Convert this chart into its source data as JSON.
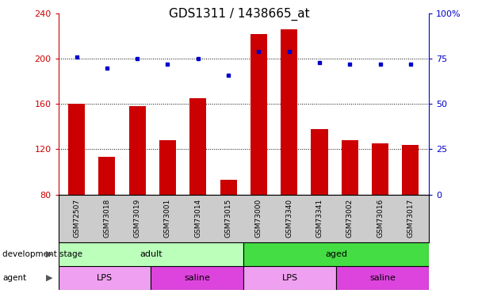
{
  "title": "GDS1311 / 1438665_at",
  "samples": [
    "GSM72507",
    "GSM73018",
    "GSM73019",
    "GSM73001",
    "GSM73014",
    "GSM73015",
    "GSM73000",
    "GSM73340",
    "GSM73341",
    "GSM73002",
    "GSM73016",
    "GSM73017"
  ],
  "counts": [
    160,
    113,
    158,
    128,
    165,
    93,
    222,
    226,
    138,
    128,
    125,
    124
  ],
  "percentiles": [
    76,
    70,
    75,
    72,
    75,
    66,
    79,
    79,
    73,
    72,
    72,
    72
  ],
  "ylim_left": [
    80,
    240
  ],
  "ylim_right": [
    0,
    100
  ],
  "yticks_left": [
    80,
    120,
    160,
    200,
    240
  ],
  "yticks_right": [
    0,
    25,
    50,
    75,
    100
  ],
  "bar_color": "#cc0000",
  "dot_color": "#0000cc",
  "development_stage_groups": [
    {
      "label": "adult",
      "start": 0,
      "end": 6,
      "color": "#bbffbb"
    },
    {
      "label": "aged",
      "start": 6,
      "end": 12,
      "color": "#44dd44"
    }
  ],
  "agent_groups": [
    {
      "label": "LPS",
      "start": 0,
      "end": 3,
      "color": "#f0a0f0"
    },
    {
      "label": "saline",
      "start": 3,
      "end": 6,
      "color": "#dd44dd"
    },
    {
      "label": "LPS",
      "start": 6,
      "end": 9,
      "color": "#f0a0f0"
    },
    {
      "label": "saline",
      "start": 9,
      "end": 12,
      "color": "#dd44dd"
    }
  ],
  "left_axis_color": "#cc0000",
  "right_axis_color": "#0000cc",
  "sample_bg_color": "#cccccc",
  "title_fontsize": 11,
  "axis_fontsize": 8,
  "label_fontsize": 8,
  "bar_width": 0.55
}
